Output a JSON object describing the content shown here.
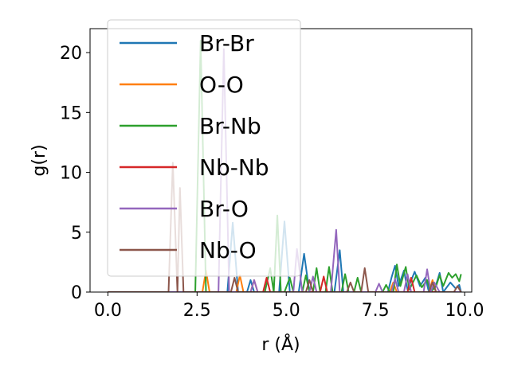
{
  "chart_data": {
    "type": "line",
    "title": "",
    "xlabel": "r (Å)",
    "ylabel": "g(r)",
    "xlim": [
      -0.5,
      10.2
    ],
    "ylim": [
      0,
      22
    ],
    "xticks": [
      0.0,
      2.5,
      5.0,
      7.5,
      10.0
    ],
    "xtick_labels": [
      "0.0",
      "2.5",
      "5.0",
      "7.5",
      "10.0"
    ],
    "yticks": [
      0,
      5,
      10,
      15,
      20
    ],
    "ytick_labels": [
      "0",
      "5",
      "10",
      "15",
      "20"
    ],
    "grid": false,
    "legend": {
      "position": "top-left",
      "opaque": true
    },
    "series": [
      {
        "name": "Br-Br",
        "color": "#1f77b4",
        "points": [
          [
            0,
            0
          ],
          [
            3.35,
            0
          ],
          [
            3.5,
            5.8
          ],
          [
            3.65,
            0
          ],
          [
            3.9,
            0
          ],
          [
            4.0,
            1.0
          ],
          [
            4.1,
            0
          ],
          [
            4.8,
            0
          ],
          [
            4.95,
            5.9
          ],
          [
            5.1,
            0
          ],
          [
            5.35,
            0
          ],
          [
            5.5,
            3.2
          ],
          [
            5.65,
            0
          ],
          [
            6.35,
            0
          ],
          [
            6.5,
            3.5
          ],
          [
            6.6,
            0
          ],
          [
            7.85,
            0
          ],
          [
            7.95,
            1.2
          ],
          [
            8.05,
            2.2
          ],
          [
            8.15,
            0.5
          ],
          [
            8.3,
            1.8
          ],
          [
            8.4,
            0.2
          ],
          [
            8.6,
            1.7
          ],
          [
            8.75,
            0.5
          ],
          [
            8.9,
            1.2
          ],
          [
            9.0,
            0
          ],
          [
            9.2,
            0.6
          ],
          [
            9.3,
            1.6
          ],
          [
            9.4,
            0
          ],
          [
            9.6,
            0.8
          ],
          [
            9.75,
            0.3
          ],
          [
            9.85,
            0.6
          ],
          [
            9.9,
            0
          ]
        ]
      },
      {
        "name": "O-O",
        "color": "#ff7f0e",
        "points": [
          [
            0,
            0
          ],
          [
            2.65,
            0
          ],
          [
            2.75,
            1.8
          ],
          [
            2.85,
            0
          ],
          [
            3.6,
            0
          ],
          [
            3.7,
            1.4
          ],
          [
            3.8,
            0
          ],
          [
            4.0,
            0
          ],
          [
            4.1,
            1.0
          ],
          [
            4.2,
            0
          ],
          [
            7.9,
            0
          ],
          [
            8.0,
            0.8
          ],
          [
            8.1,
            0
          ],
          [
            9.0,
            0
          ],
          [
            9.1,
            1.0
          ],
          [
            9.2,
            0
          ],
          [
            9.9,
            0
          ]
        ]
      },
      {
        "name": "Br-Nb",
        "color": "#2ca02c",
        "points": [
          [
            0,
            0
          ],
          [
            2.45,
            0
          ],
          [
            2.6,
            21.0
          ],
          [
            2.75,
            0
          ],
          [
            4.4,
            0
          ],
          [
            4.55,
            2.0
          ],
          [
            4.65,
            0
          ],
          [
            4.75,
            6.4
          ],
          [
            4.85,
            0
          ],
          [
            4.95,
            0
          ],
          [
            5.1,
            1.2
          ],
          [
            5.2,
            0
          ],
          [
            5.45,
            0
          ],
          [
            5.55,
            1.4
          ],
          [
            5.65,
            0
          ],
          [
            5.75,
            0
          ],
          [
            5.85,
            2.0
          ],
          [
            5.95,
            0
          ],
          [
            6.1,
            0
          ],
          [
            6.2,
            2.1
          ],
          [
            6.3,
            0
          ],
          [
            6.55,
            0
          ],
          [
            6.65,
            1.5
          ],
          [
            6.75,
            0
          ],
          [
            6.9,
            0
          ],
          [
            7.0,
            1.2
          ],
          [
            7.1,
            0
          ],
          [
            7.7,
            0
          ],
          [
            7.8,
            0.6
          ],
          [
            7.9,
            0
          ],
          [
            8.0,
            0
          ],
          [
            8.1,
            2.3
          ],
          [
            8.2,
            0.5
          ],
          [
            8.35,
            2.1
          ],
          [
            8.45,
            0.2
          ],
          [
            8.65,
            1.4
          ],
          [
            8.8,
            0.4
          ],
          [
            8.95,
            1.0
          ],
          [
            9.05,
            0
          ],
          [
            9.2,
            0.5
          ],
          [
            9.3,
            1.4
          ],
          [
            9.4,
            0.5
          ],
          [
            9.55,
            1.6
          ],
          [
            9.65,
            1.2
          ],
          [
            9.75,
            1.5
          ],
          [
            9.85,
            0.9
          ],
          [
            9.9,
            1.5
          ]
        ]
      },
      {
        "name": "Nb-Nb",
        "color": "#d62728",
        "points": [
          [
            0,
            0
          ],
          [
            4.35,
            0
          ],
          [
            4.45,
            1.2
          ],
          [
            4.55,
            0
          ],
          [
            5.95,
            0
          ],
          [
            6.05,
            1.3
          ],
          [
            6.15,
            0
          ],
          [
            8.4,
            0
          ],
          [
            8.5,
            1.2
          ],
          [
            8.6,
            0
          ],
          [
            9.9,
            0
          ]
        ]
      },
      {
        "name": "Br-O",
        "color": "#9467bd",
        "points": [
          [
            0,
            0
          ],
          [
            3.1,
            0
          ],
          [
            3.25,
            20.3
          ],
          [
            3.4,
            0
          ],
          [
            4.0,
            0
          ],
          [
            4.1,
            1.0
          ],
          [
            4.2,
            0
          ],
          [
            5.2,
            0
          ],
          [
            5.3,
            3.6
          ],
          [
            5.45,
            0
          ],
          [
            5.65,
            0
          ],
          [
            5.75,
            1.3
          ],
          [
            5.85,
            0
          ],
          [
            6.25,
            0
          ],
          [
            6.4,
            5.2
          ],
          [
            6.5,
            0
          ],
          [
            7.5,
            0
          ],
          [
            7.6,
            0.7
          ],
          [
            7.7,
            0
          ],
          [
            7.95,
            0
          ],
          [
            8.05,
            1.1
          ],
          [
            8.15,
            0
          ],
          [
            8.3,
            0
          ],
          [
            8.4,
            1.5
          ],
          [
            8.5,
            0
          ],
          [
            8.85,
            0
          ],
          [
            8.95,
            1.9
          ],
          [
            9.05,
            0
          ],
          [
            9.15,
            0.8
          ],
          [
            9.3,
            0
          ],
          [
            9.9,
            0
          ]
        ]
      },
      {
        "name": "Nb-O",
        "color": "#8c564b",
        "points": [
          [
            0,
            0
          ],
          [
            1.7,
            0
          ],
          [
            1.82,
            10.8
          ],
          [
            1.95,
            0
          ],
          [
            2.02,
            8.7
          ],
          [
            2.12,
            0
          ],
          [
            3.45,
            0
          ],
          [
            3.55,
            1.2
          ],
          [
            3.65,
            0
          ],
          [
            5.55,
            0
          ],
          [
            5.65,
            1.0
          ],
          [
            5.75,
            0
          ],
          [
            6.7,
            0
          ],
          [
            6.8,
            0.8
          ],
          [
            6.9,
            0
          ],
          [
            7.1,
            0
          ],
          [
            7.2,
            2.0
          ],
          [
            7.3,
            0
          ],
          [
            9.0,
            0
          ],
          [
            9.1,
            0.8
          ],
          [
            9.2,
            0
          ],
          [
            9.7,
            0
          ],
          [
            9.8,
            0.5
          ],
          [
            9.9,
            0
          ]
        ]
      }
    ]
  }
}
